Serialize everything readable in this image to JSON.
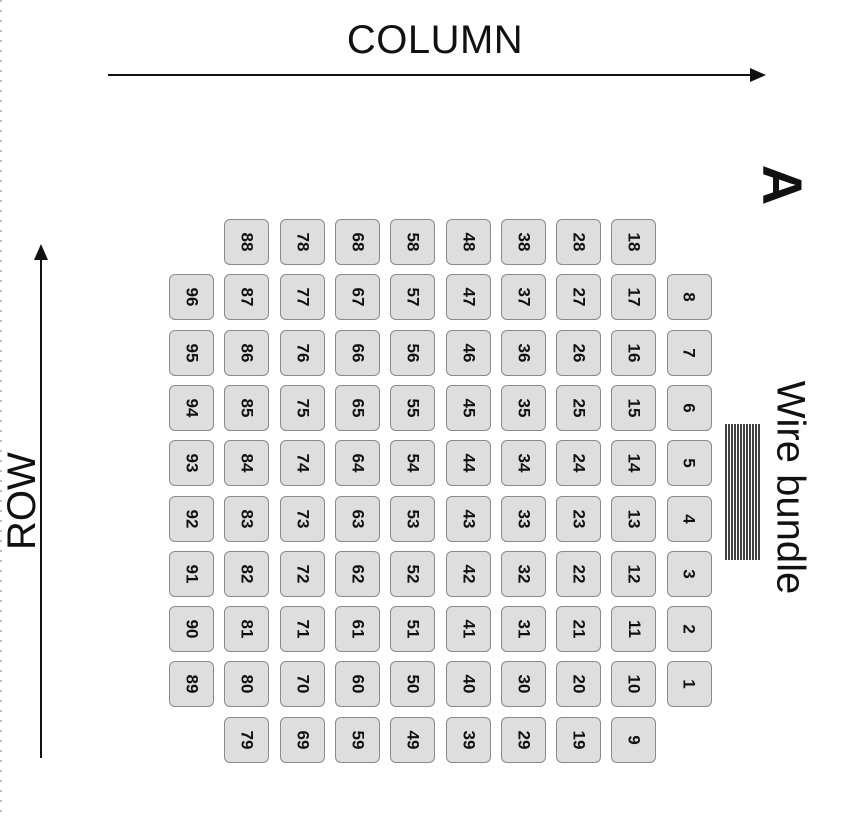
{
  "labels": {
    "column": "COLUMN",
    "row": "ROW",
    "panel": "A",
    "wire_bundle": "Wire bundle"
  },
  "electrodes": [
    [
      null,
      "88",
      "78",
      "68",
      "58",
      "48",
      "38",
      "28",
      "18",
      null
    ],
    [
      "96",
      "87",
      "77",
      "67",
      "57",
      "47",
      "37",
      "27",
      "17",
      "8"
    ],
    [
      "95",
      "86",
      "76",
      "66",
      "56",
      "46",
      "36",
      "26",
      "16",
      "7"
    ],
    [
      "94",
      "85",
      "75",
      "65",
      "55",
      "45",
      "35",
      "25",
      "15",
      "6"
    ],
    [
      "93",
      "84",
      "74",
      "64",
      "54",
      "44",
      "34",
      "24",
      "14",
      "5"
    ],
    [
      "92",
      "83",
      "73",
      "63",
      "53",
      "43",
      "33",
      "23",
      "13",
      "4"
    ],
    [
      "91",
      "82",
      "72",
      "62",
      "52",
      "42",
      "32",
      "22",
      "12",
      "3"
    ],
    [
      "90",
      "81",
      "71",
      "61",
      "51",
      "41",
      "31",
      "21",
      "11",
      "2"
    ],
    [
      "89",
      "80",
      "70",
      "60",
      "50",
      "40",
      "30",
      "20",
      "10",
      "1"
    ],
    [
      null,
      "79",
      "69",
      "59",
      "49",
      "39",
      "29",
      "19",
      "9",
      null
    ]
  ]
}
